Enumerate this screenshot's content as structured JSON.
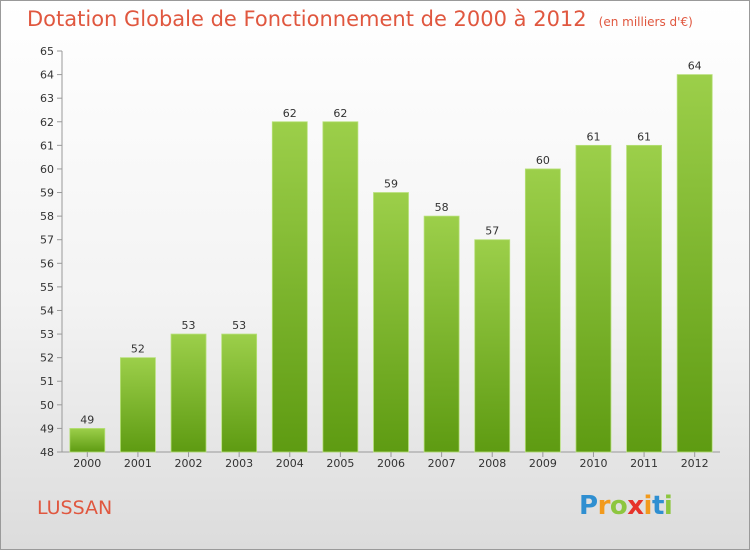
{
  "header": {
    "title": "Dotation Globale de Fonctionnement de 2000 à 2012",
    "unit": "(en milliers d'€)"
  },
  "commune": "LUSSAN",
  "logo": {
    "letters": [
      "P",
      "r",
      "o",
      "x",
      "i",
      "t",
      "i"
    ],
    "colors": [
      "#2f8fd1",
      "#f29a1c",
      "#8dc63f",
      "#e6332a",
      "#f29a1c",
      "#2f8fd1",
      "#8dc63f"
    ]
  },
  "colors": {
    "bar_top": "#9ccf4a",
    "bar_bottom": "#5e9b12",
    "accent": "#e0573f"
  },
  "chart_data": {
    "type": "bar",
    "categories": [
      "2000",
      "2001",
      "2002",
      "2003",
      "2004",
      "2005",
      "2006",
      "2007",
      "2008",
      "2009",
      "2010",
      "2011",
      "2012"
    ],
    "values": [
      49,
      52,
      53,
      53,
      62,
      62,
      59,
      58,
      57,
      60,
      61,
      61,
      64
    ],
    "ylim": [
      48,
      65
    ],
    "yticks": [
      48,
      49,
      50,
      51,
      52,
      53,
      54,
      55,
      56,
      57,
      58,
      59,
      60,
      61,
      62,
      63,
      64,
      65
    ],
    "grid": false
  }
}
